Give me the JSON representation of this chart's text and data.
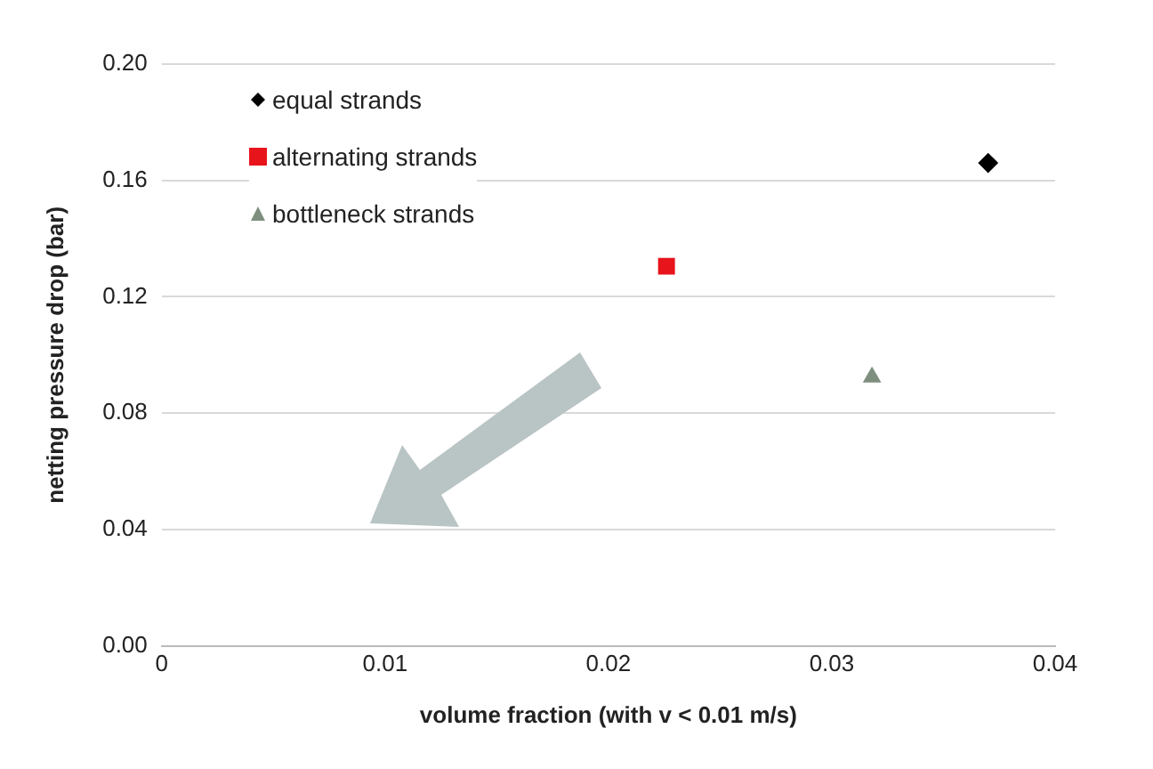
{
  "chart_data": {
    "type": "scatter",
    "xlabel": "volume fraction (with v < 0.01 m/s)",
    "ylabel": "netting pressure drop (bar)",
    "series": [
      {
        "name": "equal strands",
        "color": "#000000",
        "marker": "diamond",
        "x": [
          0.037
        ],
        "values": [
          0.166
        ]
      },
      {
        "name": "alternating strands",
        "color": "#e8141c",
        "marker": "square",
        "x": [
          0.0226
        ],
        "values": [
          0.1305
        ]
      },
      {
        "name": "bottleneck strands",
        "color": "#7f8f7f",
        "marker": "triangle",
        "x": [
          0.0318
        ],
        "values": [
          0.0924
        ]
      }
    ],
    "xlim": [
      0,
      0.04
    ],
    "xticks": [
      0,
      0.01,
      0.02,
      0.03,
      0.04
    ],
    "ylim": [
      0,
      0.2
    ],
    "yticks": [
      {
        "value": 0,
        "label": "0.00"
      },
      {
        "value": 0.04,
        "label": "0.04"
      },
      {
        "value": 0.08,
        "label": "0.08"
      },
      {
        "value": 0.12,
        "label": "0.12"
      },
      {
        "value": 0.16,
        "label": "0.16"
      },
      {
        "value": 0.2,
        "label": "0.20"
      }
    ],
    "grid": "y",
    "legend": "top left"
  }
}
